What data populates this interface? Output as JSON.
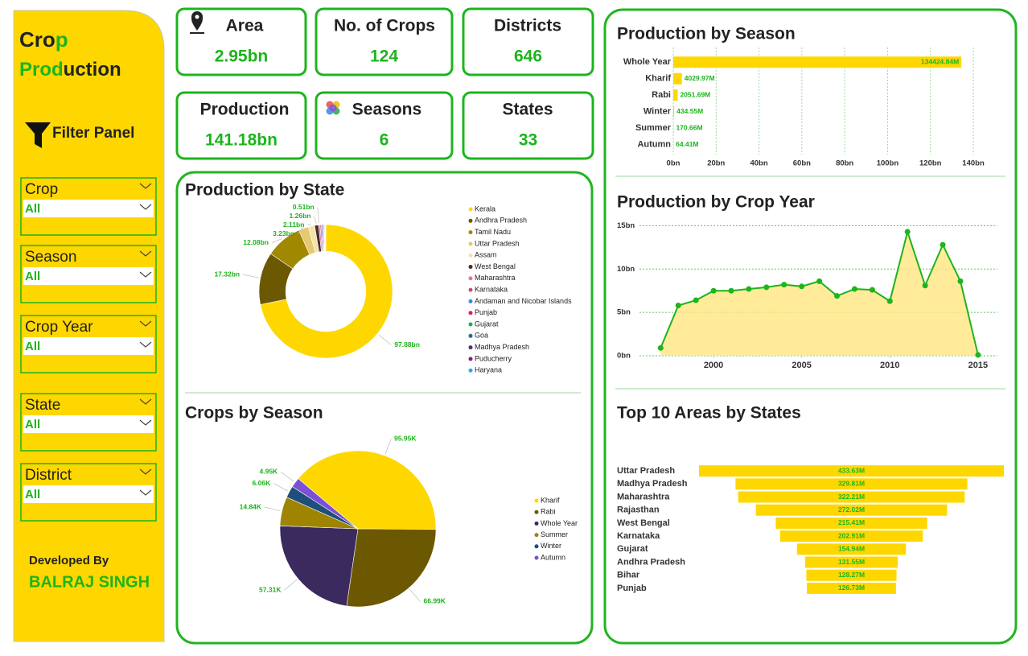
{
  "sidebar": {
    "title_parts": [
      "Cro",
      "p",
      "Prod",
      "uction"
    ],
    "filter_heading": "Filter Panel",
    "filters": [
      {
        "label": "Crop",
        "value": "All"
      },
      {
        "label": "Season",
        "value": "All"
      },
      {
        "label": "Crop Year",
        "value": "All"
      },
      {
        "label": "State",
        "value": "All"
      },
      {
        "label": "District",
        "value": "All"
      }
    ],
    "credit_label": "Developed By",
    "credit_name": "BALRAJ SINGH"
  },
  "kpis": [
    {
      "label": "Area",
      "value": "2.95bn"
    },
    {
      "label": "No. of Crops",
      "value": "124"
    },
    {
      "label": "Districts",
      "value": "646"
    },
    {
      "label": "Production",
      "value": "141.18bn"
    },
    {
      "label": "Seasons",
      "value": "6"
    },
    {
      "label": "States",
      "value": "33"
    }
  ],
  "chart_data": [
    {
      "type": "pie",
      "donut": true,
      "title": "Production by State",
      "legend": "right",
      "categories": [
        "Kerala",
        "Andhra Pradesh",
        "Tamil Nadu",
        "Uttar Pradesh",
        "Assam",
        "West Bengal",
        "Maharashtra",
        "Karnataka",
        "Andaman and Nicobar Islands",
        "Punjab",
        "Gujarat",
        "Goa",
        "Madhya Pradesh",
        "Puducherry",
        "Haryana"
      ],
      "values": [
        97.88,
        17.32,
        12.08,
        3.23,
        2.11,
        1.26,
        0.51,
        0.4,
        0.35,
        0.3,
        0.25,
        0.2,
        0.15,
        0.12,
        0.1
      ],
      "value_labels": [
        "97.88bn",
        "17.32bn",
        "12.08bn",
        "3.23bn",
        "2.11bn",
        "1.26bn",
        "0.51bn",
        null,
        null,
        null,
        null,
        null,
        null,
        null,
        null
      ],
      "colors": [
        "#FFD700",
        "#6B5800",
        "#A08800",
        "#E6C86E",
        "#F3E3A8",
        "#4A2A2A",
        "#E573B0",
        "#D6457A",
        "#2E8BE6",
        "#E6146E",
        "#2BA84A",
        "#1F6E8C",
        "#4B2C73",
        "#8B1A8B",
        "#2EA8E6"
      ]
    },
    {
      "type": "pie",
      "donut": false,
      "title": "Crops by Season",
      "legend": "right",
      "categories": [
        "Kharif",
        "Rabi",
        "Whole Year",
        "Summer",
        "Winter",
        "Autumn"
      ],
      "values": [
        95.95,
        66.99,
        57.31,
        14.84,
        6.06,
        4.95
      ],
      "value_labels": [
        "95.95K",
        "66.99K",
        "57.31K",
        "14.84K",
        "6.06K",
        "4.95K"
      ],
      "colors": [
        "#FFD700",
        "#6B5800",
        "#3A2A5E",
        "#9E8400",
        "#1F4E79",
        "#7B4FD6"
      ]
    },
    {
      "type": "hbar",
      "title": "Production by Season",
      "color": "#FFD700",
      "grid": true,
      "categories": [
        "Whole Year",
        "Kharif",
        "Rabi",
        "Winter",
        "Summer",
        "Autumn"
      ],
      "values": [
        134.42484,
        4.02997,
        2.05169,
        0.43455,
        0.17066,
        0.06441
      ],
      "value_labels": [
        "134424.84M",
        "4029.97M",
        "2051.69M",
        "434.55M",
        "170.66M",
        "64.41M"
      ],
      "xlim": [
        0,
        155
      ],
      "xticks": [
        {
          "value": 0,
          "label": "0bn"
        },
        {
          "value": 20,
          "label": "20bn"
        },
        {
          "value": 40,
          "label": "40bn"
        },
        {
          "value": 60,
          "label": "60bn"
        },
        {
          "value": 80,
          "label": "80bn"
        },
        {
          "value": 100,
          "label": "100bn"
        },
        {
          "value": 120,
          "label": "120bn"
        },
        {
          "value": 140,
          "label": "140bn"
        }
      ]
    },
    {
      "type": "area",
      "title": "Production by Crop Year",
      "color": "#1DB41D",
      "fill": "#FFE680",
      "grid": true,
      "x": [
        1997,
        1998,
        1999,
        2000,
        2001,
        2002,
        2003,
        2004,
        2005,
        2006,
        2007,
        2008,
        2009,
        2010,
        2011,
        2012,
        2013,
        2014,
        2015
      ],
      "values": [
        0.9,
        5.8,
        6.4,
        7.5,
        7.5,
        7.7,
        7.9,
        8.2,
        8.0,
        8.6,
        6.9,
        7.7,
        7.6,
        6.3,
        14.3,
        8.1,
        12.8,
        8.6,
        0.1
      ],
      "xlim": [
        1995.8,
        2016.1
      ],
      "ylim": [
        0,
        15.5
      ],
      "xticks": [
        2000,
        2005,
        2010,
        2015
      ],
      "yticks": [
        {
          "value": 0,
          "label": "0bn"
        },
        {
          "value": 5,
          "label": "5bn"
        },
        {
          "value": 10,
          "label": "10bn"
        },
        {
          "value": 15,
          "label": "15bn"
        }
      ]
    },
    {
      "type": "funnel",
      "title": "Top 10 Areas by States",
      "color": "#FFD700",
      "categories": [
        "Uttar Pradesh",
        "Madhya Pradesh",
        "Maharashtra",
        "Rajasthan",
        "West Bengal",
        "Karnataka",
        "Gujarat",
        "Andhra Pradesh",
        "Bihar",
        "Punjab"
      ],
      "values": [
        433.63,
        329.81,
        322.21,
        272.02,
        215.41,
        202.91,
        154.94,
        131.55,
        128.27,
        126.73
      ],
      "value_labels": [
        "433.63M",
        "329.81M",
        "322.21M",
        "272.02M",
        "215.41M",
        "202.91M",
        "154.94M",
        "131.55M",
        "128.27M",
        "126.73M"
      ]
    }
  ]
}
